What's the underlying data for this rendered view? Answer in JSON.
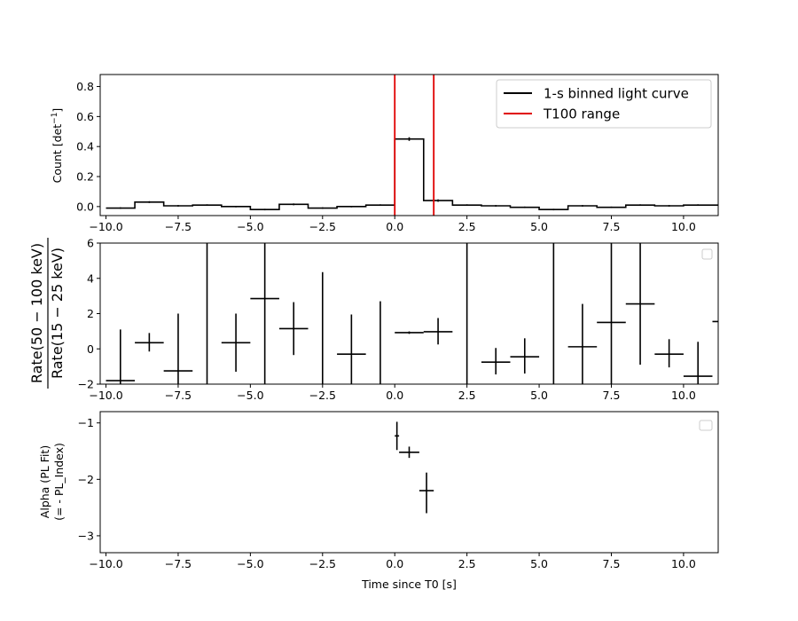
{
  "chart_data": [
    {
      "id": "lightcurve",
      "type": "line",
      "ylabel_main": "Count [det",
      "ylabel_sup": "−1",
      "ylabel_end": "]",
      "xlim": [
        -10.2,
        11.2
      ],
      "ylim": [
        -0.06,
        0.88
      ],
      "xticks": [
        -10.0,
        -7.5,
        -5.0,
        -2.5,
        0.0,
        2.5,
        5.0,
        7.5,
        10.0
      ],
      "xtick_labels": [
        "−10.0",
        "−7.5",
        "−5.0",
        "−2.5",
        "0.0",
        "2.5",
        "5.0",
        "7.5",
        "10.0"
      ],
      "yticks": [
        0.0,
        0.2,
        0.4,
        0.6,
        0.8
      ],
      "ytick_labels": [
        "0.0",
        "0.2",
        "0.4",
        "0.6",
        "0.8"
      ],
      "legend": {
        "placement": "upper-right",
        "entries": [
          {
            "label": "1-s binned light curve",
            "color": "#000000"
          },
          {
            "label": "T100 range",
            "color": "#e00000"
          }
        ]
      },
      "series": [
        {
          "name": "1-s binned light curve",
          "color": "#000000",
          "bin_width": 1,
          "x": [
            -10.0,
            -9.0,
            -8.0,
            -7.0,
            -6.0,
            -5.0,
            -4.0,
            -3.0,
            -2.0,
            -1.0,
            0.0,
            1.0,
            2.0,
            3.0,
            4.0,
            5.0,
            6.0,
            7.0,
            8.0,
            9.0,
            10.0
          ],
          "y": [
            -0.01,
            0.03,
            0.005,
            0.01,
            0.0,
            -0.02,
            0.015,
            -0.01,
            0.0,
            0.01,
            0.45,
            0.04,
            0.01,
            0.005,
            -0.005,
            -0.02,
            0.005,
            -0.005,
            0.01,
            0.005,
            0.01
          ],
          "yerr": [
            0.005,
            0.006,
            0.005,
            0.005,
            0.005,
            0.005,
            0.006,
            0.005,
            0.005,
            0.005,
            0.012,
            0.008,
            0.005,
            0.005,
            0.005,
            0.005,
            0.005,
            0.005,
            0.005,
            0.005,
            0.005
          ]
        }
      ],
      "vlines": [
        {
          "x": 0.0,
          "color": "#e00000"
        },
        {
          "x": 1.35,
          "color": "#e00000"
        }
      ]
    },
    {
      "id": "hardness",
      "type": "scatter",
      "ylabel_num": "Rate(50 − 100 keV)",
      "ylabel_den": "Rate(15 − 25 keV)",
      "xlim": [
        -10.2,
        11.2
      ],
      "ylim": [
        -2,
        6
      ],
      "xticks": [
        -10.0,
        -7.5,
        -5.0,
        -2.5,
        0.0,
        2.5,
        5.0,
        7.5,
        10.0
      ],
      "xtick_labels": [
        "−10.0",
        "−7.5",
        "−5.0",
        "−2.5",
        "0.0",
        "2.5",
        "5.0",
        "7.5",
        "10.0"
      ],
      "yticks": [
        -2,
        0,
        2,
        4,
        6
      ],
      "ytick_labels": [
        "−2",
        "0",
        "2",
        "4",
        "6"
      ],
      "legend": {
        "placement": "upper-right",
        "entries": []
      },
      "series": [
        {
          "color": "#000000",
          "points": [
            {
              "x": -9.5,
              "y": -1.8,
              "xerr": 0.5,
              "ylo": -2.0,
              "yhi": 1.1
            },
            {
              "x": -8.5,
              "y": 0.35,
              "xerr": 0.5,
              "ylo": -0.15,
              "yhi": 0.9
            },
            {
              "x": -7.5,
              "y": -1.25,
              "xerr": 0.5,
              "ylo": -2.0,
              "yhi": 2.0
            },
            {
              "x": -6.5,
              "y": null,
              "xerr": 0,
              "ylo": -2.0,
              "yhi": 6.0
            },
            {
              "x": -5.5,
              "y": 0.35,
              "xerr": 0.5,
              "ylo": -1.3,
              "yhi": 2.0
            },
            {
              "x": -4.5,
              "y": 2.85,
              "xerr": 0.5,
              "ylo": -2.0,
              "yhi": 6.0
            },
            {
              "x": -3.5,
              "y": 1.15,
              "xerr": 0.5,
              "ylo": -0.35,
              "yhi": 2.65
            },
            {
              "x": -2.5,
              "y": null,
              "xerr": 0,
              "ylo": -2.0,
              "yhi": 4.35
            },
            {
              "x": -1.5,
              "y": -0.3,
              "xerr": 0.5,
              "ylo": -2.0,
              "yhi": 1.95
            },
            {
              "x": -0.5,
              "y": null,
              "xerr": 0,
              "ylo": -2.0,
              "yhi": 2.7
            },
            {
              "x": 0.5,
              "y": 0.92,
              "xerr": 0.5,
              "ylo": 0.85,
              "yhi": 0.99
            },
            {
              "x": 1.5,
              "y": 0.97,
              "xerr": 0.5,
              "ylo": 0.25,
              "yhi": 1.75
            },
            {
              "x": 2.5,
              "y": null,
              "xerr": 0,
              "ylo": -2.0,
              "yhi": 6.0
            },
            {
              "x": 3.5,
              "y": -0.75,
              "xerr": 0.5,
              "ylo": -1.45,
              "yhi": 0.05
            },
            {
              "x": 4.5,
              "y": -0.45,
              "xerr": 0.5,
              "ylo": -1.4,
              "yhi": 0.6
            },
            {
              "x": 5.5,
              "y": null,
              "xerr": 0,
              "ylo": -2.0,
              "yhi": 6.0
            },
            {
              "x": 6.5,
              "y": 0.12,
              "xerr": 0.5,
              "ylo": -2.0,
              "yhi": 2.55
            },
            {
              "x": 7.5,
              "y": 1.5,
              "xerr": 0.5,
              "ylo": -2.0,
              "yhi": 6.0
            },
            {
              "x": 8.5,
              "y": 2.55,
              "xerr": 0.5,
              "ylo": -0.9,
              "yhi": 6.0
            },
            {
              "x": 9.5,
              "y": -0.3,
              "xerr": 0.5,
              "ylo": -1.05,
              "yhi": 0.55
            },
            {
              "x": 10.5,
              "y": -1.55,
              "xerr": 0.5,
              "ylo": -2.0,
              "yhi": 0.4
            },
            {
              "x": 11.5,
              "y": 1.55,
              "xerr": 0.5,
              "ylo": 1.55,
              "yhi": 1.55
            }
          ]
        }
      ]
    },
    {
      "id": "alpha",
      "type": "scatter",
      "ylabel_line1": "Alpha (PL Fit)",
      "ylabel_line2": "(= - PL_Index)",
      "xlabel": "Time since T0 [s]",
      "xlim": [
        -10.2,
        11.2
      ],
      "ylim": [
        -3.3,
        -0.8
      ],
      "xticks": [
        -10.0,
        -7.5,
        -5.0,
        -2.5,
        0.0,
        2.5,
        5.0,
        7.5,
        10.0
      ],
      "xtick_labels": [
        "−10.0",
        "−7.5",
        "−5.0",
        "−2.5",
        "0.0",
        "2.5",
        "5.0",
        "7.5",
        "10.0"
      ],
      "yticks": [
        -3,
        -2,
        -1
      ],
      "ytick_labels": [
        "−3",
        "−2",
        "−1"
      ],
      "legend": {
        "placement": "upper-right",
        "entries": []
      },
      "series": [
        {
          "color": "#000000",
          "points": [
            {
              "x": 0.075,
              "y": -1.23,
              "xerr": 0.075,
              "ylo": -1.48,
              "yhi": -0.98
            },
            {
              "x": 0.5,
              "y": -1.52,
              "xerr": 0.35,
              "ylo": -1.62,
              "yhi": -1.42
            },
            {
              "x": 1.1,
              "y": -2.2,
              "xerr": 0.25,
              "ylo": -2.6,
              "yhi": -1.88
            }
          ]
        }
      ]
    }
  ]
}
